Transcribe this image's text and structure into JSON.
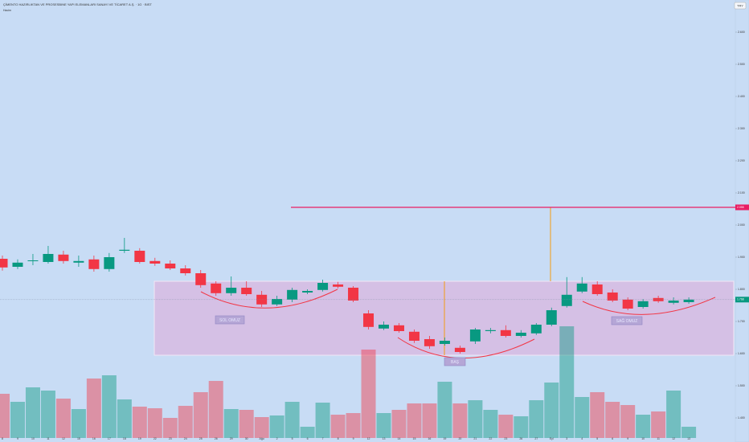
{
  "chart_data": {
    "type": "candlestick",
    "title": "ÇİMENTO HAZIRLIKTAN VE PROSESBINE YAPI ELEMANLARI SANAYI VE TİCARET A.Ş. · 1G · BIST",
    "subtitle": "Hacim",
    "currency": "TRY",
    "categories": [
      "8",
      "9",
      "10",
      "11",
      "12",
      "15",
      "16",
      "17",
      "18",
      "19",
      "22",
      "23",
      "24",
      "25",
      "26",
      "29",
      "30",
      "Ağu",
      "2",
      "5",
      "6",
      "7",
      "8",
      "9",
      "12",
      "13",
      "14",
      "15",
      "16",
      "19",
      "20",
      "21",
      "22",
      "23",
      "26",
      "27",
      "Eyl",
      "3",
      "4",
      "5",
      "6",
      "9",
      "10",
      "11",
      "12",
      "13"
    ],
    "open": [
      1.895,
      1.87,
      1.888,
      1.885,
      1.908,
      1.883,
      1.893,
      1.863,
      1.92,
      1.92,
      1.888,
      1.88,
      1.865,
      1.85,
      1.818,
      1.788,
      1.805,
      1.783,
      1.753,
      1.768,
      1.79,
      1.798,
      1.815,
      1.805,
      1.725,
      1.678,
      1.688,
      1.668,
      1.645,
      1.63,
      1.618,
      1.638,
      1.67,
      1.673,
      1.655,
      1.663,
      1.69,
      1.748,
      1.793,
      1.815,
      1.79,
      1.768,
      1.745,
      1.773,
      1.758,
      1.76
    ],
    "high": [
      1.905,
      1.893,
      1.91,
      1.935,
      1.92,
      1.905,
      1.905,
      1.913,
      1.96,
      1.928,
      1.898,
      1.89,
      1.875,
      1.86,
      1.825,
      1.84,
      1.825,
      1.795,
      1.78,
      1.805,
      1.8,
      1.83,
      1.823,
      1.81,
      1.735,
      1.7,
      1.695,
      1.675,
      1.655,
      1.65,
      1.625,
      1.68,
      1.68,
      1.688,
      1.673,
      1.695,
      1.743,
      1.838,
      1.838,
      1.825,
      1.8,
      1.775,
      1.77,
      1.78,
      1.775,
      1.775
    ],
    "low": [
      1.858,
      1.863,
      1.875,
      1.88,
      1.88,
      1.87,
      1.855,
      1.855,
      1.913,
      1.88,
      1.873,
      1.86,
      1.843,
      1.805,
      1.78,
      1.78,
      1.78,
      1.745,
      1.748,
      1.76,
      1.785,
      1.793,
      1.803,
      1.76,
      1.675,
      1.673,
      1.665,
      1.633,
      1.615,
      1.625,
      1.6,
      1.63,
      1.663,
      1.65,
      1.65,
      1.658,
      1.685,
      1.743,
      1.788,
      1.78,
      1.76,
      1.735,
      1.74,
      1.758,
      1.753,
      1.755
    ],
    "close": [
      1.868,
      1.883,
      1.89,
      1.91,
      1.888,
      1.888,
      1.863,
      1.9,
      1.923,
      1.885,
      1.88,
      1.865,
      1.85,
      1.813,
      1.788,
      1.805,
      1.785,
      1.753,
      1.77,
      1.798,
      1.795,
      1.82,
      1.808,
      1.765,
      1.683,
      1.69,
      1.67,
      1.64,
      1.623,
      1.64,
      1.605,
      1.675,
      1.673,
      1.655,
      1.665,
      1.69,
      1.735,
      1.783,
      1.818,
      1.785,
      1.765,
      1.74,
      1.763,
      1.763,
      1.765,
      1.768
    ],
    "volume": [
      5.5,
      4.5,
      6.3,
      5.9,
      4.9,
      3.6,
      7.4,
      7.8,
      4.8,
      3.9,
      3.7,
      2.5,
      4.0,
      5.7,
      7.1,
      3.6,
      3.5,
      2.6,
      2.8,
      4.5,
      1.4,
      4.4,
      2.9,
      3.1,
      11.0,
      3.1,
      3.5,
      4.3,
      4.3,
      7.0,
      4.3,
      4.7,
      3.5,
      2.9,
      2.7,
      4.7,
      6.9,
      13.9,
      5.1,
      5.7,
      4.5,
      4.1,
      2.9,
      3.3,
      5.9,
      1.4
    ],
    "up_color": "#089981",
    "down_color": "#f23645",
    "ylim": [
      1.325,
      2.7
    ],
    "yticks": [
      {
        "value": 1.4,
        "label": "1.400"
      },
      {
        "value": 1.5,
        "label": "1.500"
      },
      {
        "value": 1.6,
        "label": "1.600"
      },
      {
        "value": 1.7,
        "label": "1.700"
      },
      {
        "value": 1.8,
        "label": "1.800"
      },
      {
        "value": 1.9,
        "label": "1.900"
      },
      {
        "value": 2.0,
        "label": "2.000"
      },
      {
        "value": 2.1,
        "label": "2.100"
      },
      {
        "value": 2.2,
        "label": "2.200"
      },
      {
        "value": 2.3,
        "label": "2.300"
      },
      {
        "value": 2.4,
        "label": "2.400"
      },
      {
        "value": 2.5,
        "label": "2.500"
      },
      {
        "value": 2.6,
        "label": "2.600"
      }
    ],
    "volume_lim": [
      0,
      15
    ],
    "hlines": [
      {
        "value": 2.055,
        "color": "#e91e63"
      }
    ],
    "annotations": [
      "SOL OMUZ",
      "BAŞ",
      "SAĞ OMUZ"
    ]
  }
}
